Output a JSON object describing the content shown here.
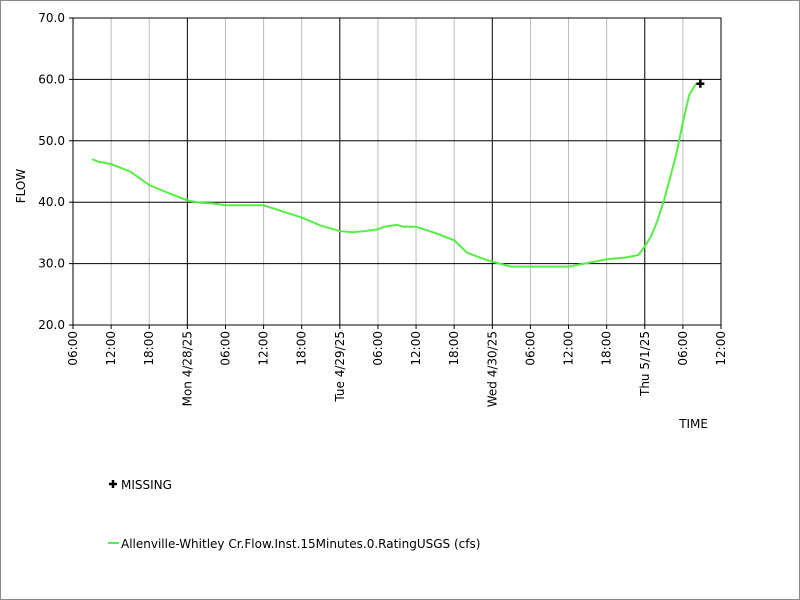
{
  "chart_data": {
    "type": "line",
    "x_label": "TIME",
    "y_label": "FLOW",
    "xlim": [
      "2025-04-27T06:00",
      "2025-05-01T12:00"
    ],
    "xticks": [
      {
        "value": "2025-04-27T06:00",
        "label": "06:00"
      },
      {
        "value": "2025-04-27T12:00",
        "label": "12:00"
      },
      {
        "value": "2025-04-27T18:00",
        "label": "18:00"
      },
      {
        "value": "2025-04-28T00:00",
        "label": "Mon 4/28/25"
      },
      {
        "value": "2025-04-28T06:00",
        "label": "06:00"
      },
      {
        "value": "2025-04-28T12:00",
        "label": "12:00"
      },
      {
        "value": "2025-04-28T18:00",
        "label": "18:00"
      },
      {
        "value": "2025-04-29T00:00",
        "label": "Tue 4/29/25"
      },
      {
        "value": "2025-04-29T06:00",
        "label": "06:00"
      },
      {
        "value": "2025-04-29T12:00",
        "label": "12:00"
      },
      {
        "value": "2025-04-29T18:00",
        "label": "18:00"
      },
      {
        "value": "2025-04-30T00:00",
        "label": "Wed 4/30/25"
      },
      {
        "value": "2025-04-30T06:00",
        "label": "06:00"
      },
      {
        "value": "2025-04-30T12:00",
        "label": "12:00"
      },
      {
        "value": "2025-04-30T18:00",
        "label": "18:00"
      },
      {
        "value": "2025-05-01T00:00",
        "label": "Thu 5/1/25"
      },
      {
        "value": "2025-05-01T06:00",
        "label": "06:00"
      },
      {
        "value": "2025-05-01T12:00",
        "label": "12:00"
      }
    ],
    "ylim": [
      20,
      70
    ],
    "yticks": [
      {
        "value": 20,
        "label": "20.0"
      },
      {
        "value": 30,
        "label": "30.0"
      },
      {
        "value": 40,
        "label": "40.0"
      },
      {
        "value": 50,
        "label": "50.0"
      },
      {
        "value": 60,
        "label": "60.0"
      },
      {
        "value": 70,
        "label": "70.0"
      }
    ],
    "grid": true,
    "series": [
      {
        "name": "MISSING",
        "color": "#000000",
        "marker": "plus",
        "x": [
          "2025-05-01T08:45"
        ],
        "values": [
          59.3
        ]
      },
      {
        "name": "Allenville-Whitley Cr.Flow.Inst.15Minutes.0.RatingUSGS (cfs)",
        "color": "#55ee44",
        "marker": "line",
        "x": [
          "2025-04-27T09:00",
          "2025-04-27T10:00",
          "2025-04-27T12:00",
          "2025-04-27T15:00",
          "2025-04-27T18:00",
          "2025-04-27T21:00",
          "2025-04-28T00:00",
          "2025-04-28T02:00",
          "2025-04-28T04:00",
          "2025-04-28T06:00",
          "2025-04-28T12:00",
          "2025-04-28T15:00",
          "2025-04-28T18:00",
          "2025-04-28T21:00",
          "2025-04-29T00:00",
          "2025-04-29T02:00",
          "2025-04-29T04:00",
          "2025-04-29T06:00",
          "2025-04-29T07:00",
          "2025-04-29T09:00",
          "2025-04-29T10:00",
          "2025-04-29T12:00",
          "2025-04-29T15:00",
          "2025-04-29T18:00",
          "2025-04-29T20:00",
          "2025-04-29T22:00",
          "2025-04-30T00:00",
          "2025-04-30T03:00",
          "2025-04-30T12:00",
          "2025-04-30T15:00",
          "2025-04-30T18:00",
          "2025-04-30T21:00",
          "2025-04-30T23:00",
          "2025-05-01T00:00",
          "2025-05-01T01:00",
          "2025-05-01T02:00",
          "2025-05-01T03:00",
          "2025-05-01T04:00",
          "2025-05-01T05:00",
          "2025-05-01T06:00",
          "2025-05-01T07:00",
          "2025-05-01T08:00",
          "2025-05-01T08:30"
        ],
        "values": [
          47.0,
          46.6,
          46.2,
          45.0,
          42.8,
          41.5,
          40.3,
          39.9,
          39.8,
          39.5,
          39.5,
          38.5,
          37.5,
          36.2,
          35.3,
          35.1,
          35.3,
          35.6,
          36.0,
          36.3,
          36.0,
          36.0,
          35.0,
          33.8,
          31.8,
          31.0,
          30.3,
          29.5,
          29.5,
          30.1,
          30.7,
          31.0,
          31.4,
          32.8,
          34.5,
          37.0,
          40.2,
          44.0,
          48.0,
          53.0,
          57.5,
          59.2,
          59.3
        ]
      }
    ]
  }
}
